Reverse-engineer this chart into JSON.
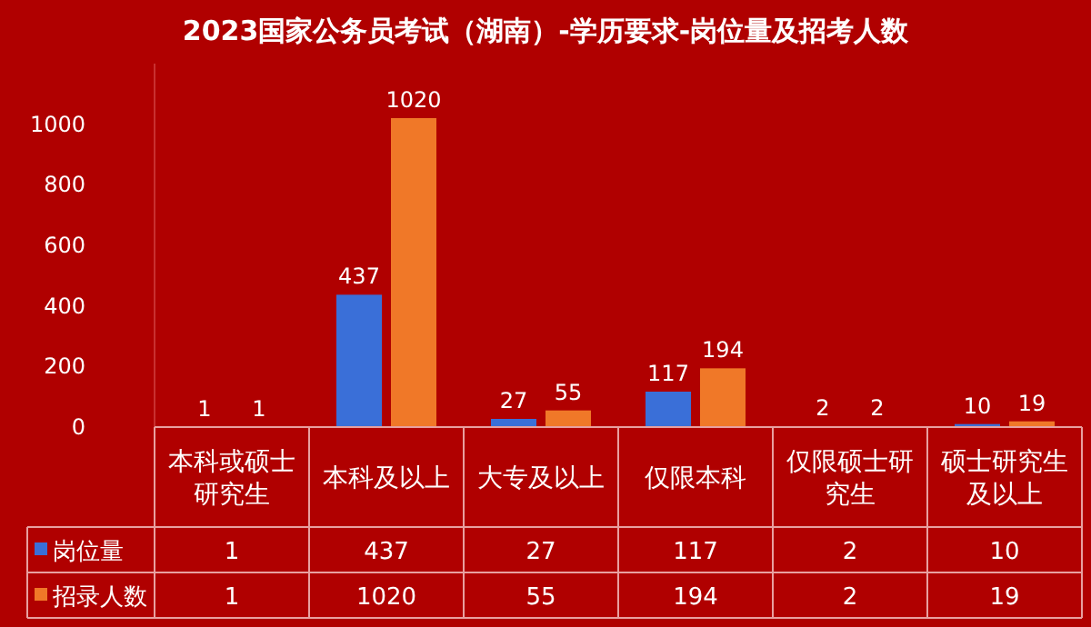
{
  "chart_data": {
    "type": "bar",
    "title": "2023国家公务员考试（湖南）-学历要求-岗位量及招考人数",
    "categories": [
      "本科或硕士研究生",
      "本科及以上",
      "大专及以上",
      "仅限本科",
      "仅限硕士研究生",
      "硕士研究生及以上"
    ],
    "series": [
      {
        "name": "岗位量",
        "color": "#3a6fd8",
        "values": [
          1,
          437,
          27,
          117,
          2,
          10
        ],
        "value_labels": [
          "1",
          "437",
          "27",
          "117",
          "2",
          "10"
        ]
      },
      {
        "name": "招录人数",
        "color": "#f07828",
        "values": [
          1,
          1020,
          55,
          194,
          2,
          19
        ],
        "value_labels": [
          "1",
          "1020",
          "55",
          "194",
          "2",
          "19"
        ]
      }
    ],
    "ylim": [
      0,
      1200
    ],
    "yticks": [
      0,
      200,
      400,
      600,
      800,
      1000
    ],
    "data_labels": true,
    "grid": false,
    "legend": "bottom"
  }
}
